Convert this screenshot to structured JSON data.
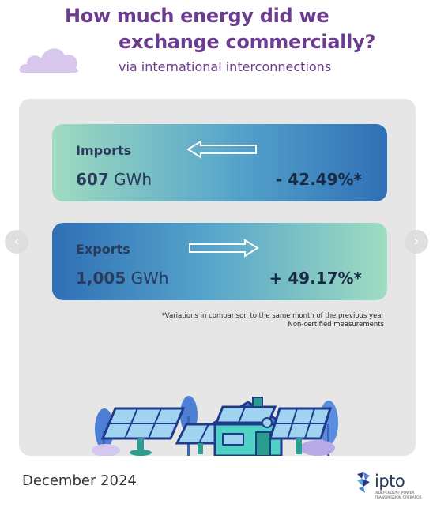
{
  "header": {
    "title_line1": "How much energy did we",
    "title_line2": "exchange commercially?",
    "subtitle": "via international interconnections"
  },
  "imports": {
    "label": "Imports",
    "value": "607",
    "unit": "GWh",
    "change": "- 42.49%*",
    "direction": "left-arrow-icon"
  },
  "exports": {
    "label": "Exports",
    "value": "1,005",
    "unit": "GWh",
    "change": "+ 49.17%*",
    "direction": "right-arrow-icon"
  },
  "notes": {
    "line1": "*Variations in comparison to the same month of the previous year",
    "line2": "Non-certified measurements"
  },
  "footer": {
    "date": "December 2024",
    "logo_text": "ipto",
    "logo_subtitle": "Independent Power Transmission Operator"
  },
  "navigation": {
    "prev_icon": "chevron-left-icon",
    "next_icon": "chevron-right-icon"
  },
  "colors": {
    "title": "#6b3d8e",
    "panel": "#e6e6e6",
    "gradient_green": "#9fdcc0",
    "gradient_blue": "#2f6fb5",
    "text_dark": "#2a3a5a",
    "cloud": "#d9c8ee"
  }
}
